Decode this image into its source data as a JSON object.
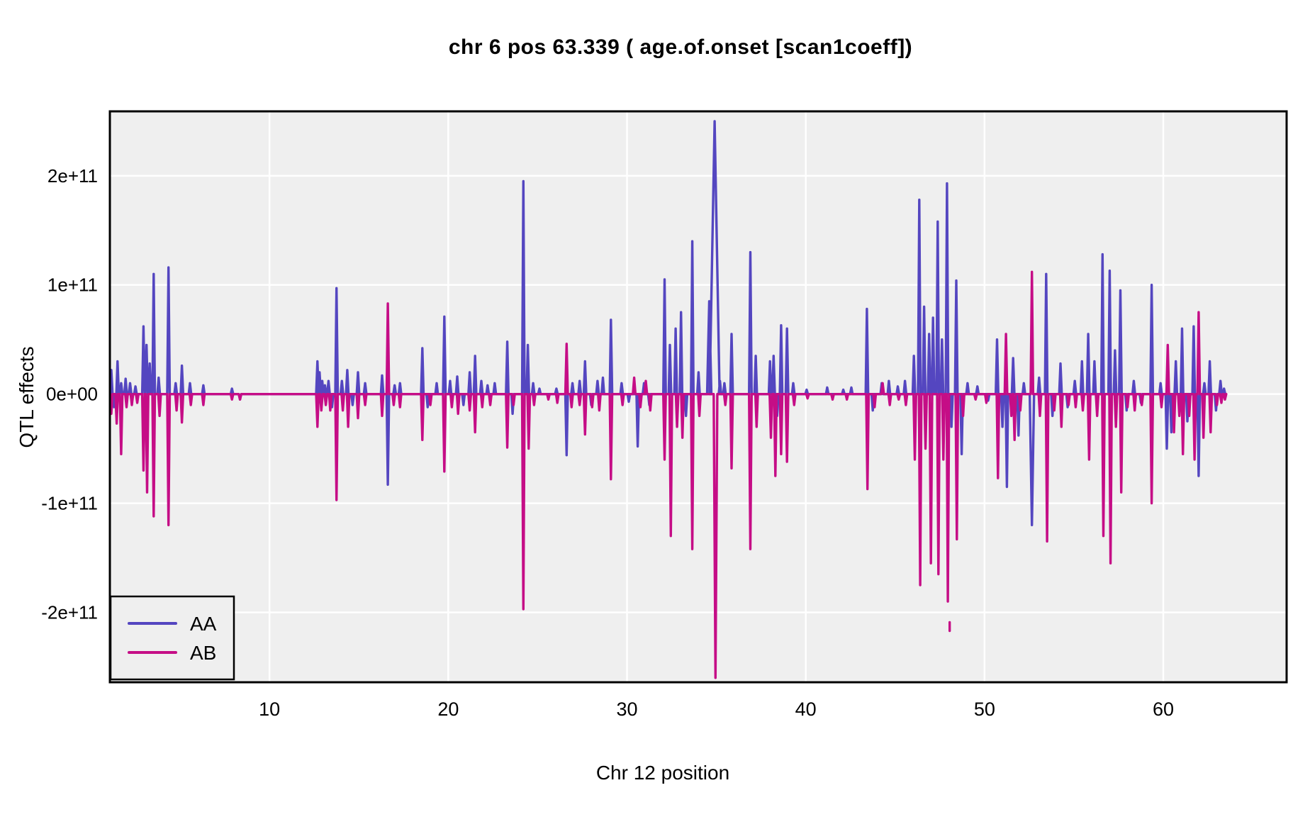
{
  "title": "chr 6 pos 63.339 ( age.of.onset  [scan1coeff])",
  "colors": {
    "aa_line": "#5446C0",
    "ab_line": "#C50D86",
    "panel_background": "#EFEFEF",
    "gridline": "#FFFFFF",
    "panel_border": "#000000",
    "text": "#000000",
    "page_background": "#FFFFFF"
  },
  "chart_data": {
    "type": "line",
    "title": "chr 6 pos 63.339 ( age.of.onset  [scan1coeff])",
    "xlabel": "Chr 12 position",
    "ylabel": "QTL effects",
    "unit": "values in units of 1e+11",
    "xlim": [
      1.07,
      66.9
    ],
    "ylim": [
      -2.64,
      2.59
    ],
    "data_x_range": [
      1.07,
      63.5
    ],
    "grid": "major gridlines only, white on grey panel",
    "x_ticks": [
      {
        "value": 10,
        "label": "10"
      },
      {
        "value": 20,
        "label": "20"
      },
      {
        "value": 30,
        "label": "30"
      },
      {
        "value": 40,
        "label": "40"
      },
      {
        "value": 50,
        "label": "50"
      },
      {
        "value": 60,
        "label": "60"
      }
    ],
    "y_ticks": [
      {
        "value": -2,
        "label": "-2e+11"
      },
      {
        "value": -1,
        "label": "-1e+11"
      },
      {
        "value": 0,
        "label": "0e+00"
      },
      {
        "value": 1,
        "label": "1e+11"
      },
      {
        "value": 2,
        "label": "2e+11"
      }
    ],
    "legend": {
      "position": "inside bottom-left",
      "entries": [
        {
          "name": "AA",
          "color": "#5446C0"
        },
        {
          "name": "AB",
          "color": "#C50D86"
        }
      ]
    },
    "series": [
      {
        "name": "AA",
        "color": "#5446C0",
        "baseline": 0,
        "spikes": [
          [
            1.15,
            0.22
          ],
          [
            1.3,
            -0.12
          ],
          [
            1.5,
            0.3
          ],
          [
            1.7,
            0.1
          ],
          [
            1.95,
            0.14
          ],
          [
            2.2,
            0.1
          ],
          [
            2.5,
            0.07
          ],
          [
            2.95,
            0.62
          ],
          [
            3.12,
            0.45
          ],
          [
            3.3,
            0.28
          ],
          [
            3.52,
            1.1
          ],
          [
            3.8,
            0.15
          ],
          [
            4.35,
            1.16
          ],
          [
            4.75,
            0.1
          ],
          [
            5.1,
            0.26
          ],
          [
            5.55,
            0.1
          ],
          [
            6.3,
            0.08
          ],
          [
            7.9,
            0.05
          ],
          [
            8.35,
            -0.05
          ],
          [
            12.68,
            0.3
          ],
          [
            12.8,
            0.2
          ],
          [
            12.95,
            0.12
          ],
          [
            13.1,
            0.08
          ],
          [
            13.3,
            0.12
          ],
          [
            13.5,
            -0.12
          ],
          [
            13.75,
            0.97
          ],
          [
            14.05,
            0.12
          ],
          [
            14.35,
            0.22
          ],
          [
            14.65,
            -0.1
          ],
          [
            14.95,
            0.2
          ],
          [
            15.35,
            0.1
          ],
          [
            16.3,
            0.17
          ],
          [
            16.62,
            -0.83
          ],
          [
            17.0,
            0.08
          ],
          [
            17.3,
            0.1
          ],
          [
            18.55,
            0.42
          ],
          [
            18.85,
            -0.12
          ],
          [
            19.35,
            0.1
          ],
          [
            19.78,
            0.71
          ],
          [
            20.1,
            0.12
          ],
          [
            20.5,
            0.16
          ],
          [
            20.85,
            -0.1
          ],
          [
            21.2,
            0.2
          ],
          [
            21.5,
            0.35
          ],
          [
            21.85,
            0.12
          ],
          [
            22.2,
            0.08
          ],
          [
            22.6,
            0.1
          ],
          [
            23.3,
            0.48
          ],
          [
            23.6,
            -0.18
          ],
          [
            24.2,
            1.95
          ],
          [
            24.45,
            0.45
          ],
          [
            24.75,
            0.1
          ],
          [
            25.1,
            0.05
          ],
          [
            26.05,
            0.05
          ],
          [
            26.62,
            -0.56
          ],
          [
            26.95,
            0.1
          ],
          [
            27.35,
            0.12
          ],
          [
            27.65,
            0.3
          ],
          [
            28.0,
            -0.1
          ],
          [
            28.35,
            0.12
          ],
          [
            28.65,
            0.15
          ],
          [
            29.1,
            0.68
          ],
          [
            29.7,
            0.1
          ],
          [
            30.1,
            -0.07
          ],
          [
            30.6,
            -0.48
          ],
          [
            30.95,
            0.1
          ],
          [
            31.25,
            -0.1
          ],
          [
            32.1,
            1.05
          ],
          [
            32.4,
            0.45
          ],
          [
            32.72,
            0.6
          ],
          [
            33.02,
            0.75
          ],
          [
            33.3,
            -0.2
          ],
          [
            33.65,
            1.4
          ],
          [
            34.0,
            0.2
          ],
          [
            34.6,
            0.85,
            0.12
          ],
          [
            34.9,
            2.5,
            0.28
          ],
          [
            35.2,
            0.12
          ],
          [
            35.45,
            0.1
          ],
          [
            35.85,
            0.55
          ],
          [
            36.9,
            1.3
          ],
          [
            37.2,
            0.35
          ],
          [
            38.0,
            0.3
          ],
          [
            38.2,
            0.35
          ],
          [
            38.4,
            -0.2
          ],
          [
            38.62,
            0.63
          ],
          [
            38.95,
            0.6
          ],
          [
            39.3,
            0.1
          ],
          [
            40.05,
            0.04
          ],
          [
            41.2,
            0.06
          ],
          [
            42.1,
            0.04
          ],
          [
            42.55,
            0.06
          ],
          [
            43.42,
            0.78
          ],
          [
            43.75,
            -0.15
          ],
          [
            44.25,
            0.1
          ],
          [
            44.65,
            0.12
          ],
          [
            45.15,
            0.07
          ],
          [
            45.55,
            0.12
          ],
          [
            46.05,
            0.35
          ],
          [
            46.35,
            1.78
          ],
          [
            46.62,
            0.8
          ],
          [
            46.9,
            0.55
          ],
          [
            47.12,
            0.7
          ],
          [
            47.38,
            1.58
          ],
          [
            47.62,
            0.5
          ],
          [
            47.9,
            1.93
          ],
          [
            48.15,
            -0.3
          ],
          [
            48.42,
            1.04
          ],
          [
            48.72,
            -0.55
          ],
          [
            49.05,
            0.1
          ],
          [
            49.6,
            0.07
          ],
          [
            50.2,
            -0.06
          ],
          [
            50.7,
            0.5
          ],
          [
            51.0,
            -0.3
          ],
          [
            51.25,
            -0.85
          ],
          [
            51.6,
            0.33
          ],
          [
            51.9,
            -0.38
          ],
          [
            52.2,
            0.1
          ],
          [
            52.65,
            -1.2,
            0.12
          ],
          [
            53.05,
            0.15
          ],
          [
            53.45,
            1.1
          ],
          [
            53.8,
            -0.2
          ],
          [
            54.25,
            0.28
          ],
          [
            54.65,
            -0.12
          ],
          [
            55.05,
            0.12
          ],
          [
            55.45,
            0.3
          ],
          [
            55.8,
            0.55
          ],
          [
            56.15,
            0.3
          ],
          [
            56.6,
            1.28
          ],
          [
            57.0,
            1.13
          ],
          [
            57.3,
            0.4
          ],
          [
            57.6,
            0.95
          ],
          [
            57.95,
            -0.15
          ],
          [
            58.35,
            0.12
          ],
          [
            58.75,
            -0.08
          ],
          [
            59.35,
            1.0
          ],
          [
            59.85,
            0.1
          ],
          [
            60.2,
            -0.5
          ],
          [
            60.45,
            -0.35
          ],
          [
            60.7,
            0.3
          ],
          [
            61.05,
            0.6
          ],
          [
            61.35,
            -0.25
          ],
          [
            61.7,
            0.62
          ],
          [
            61.98,
            -0.75
          ],
          [
            62.3,
            0.1
          ],
          [
            62.6,
            0.3
          ],
          [
            62.95,
            -0.15
          ],
          [
            63.2,
            0.12
          ],
          [
            63.4,
            0.05
          ]
        ],
        "dots": []
      },
      {
        "name": "AB",
        "color": "#C50D86",
        "baseline": 0,
        "spikes": [
          [
            1.15,
            -0.18
          ],
          [
            1.45,
            -0.27
          ],
          [
            1.7,
            -0.55
          ],
          [
            2.0,
            -0.12
          ],
          [
            2.3,
            -0.1
          ],
          [
            2.6,
            -0.08
          ],
          [
            2.95,
            -0.7
          ],
          [
            3.15,
            -0.9
          ],
          [
            3.52,
            -1.12
          ],
          [
            3.85,
            -0.2
          ],
          [
            4.35,
            -1.2
          ],
          [
            4.8,
            -0.15
          ],
          [
            5.1,
            -0.26
          ],
          [
            5.6,
            -0.1
          ],
          [
            6.3,
            -0.1
          ],
          [
            7.9,
            -0.05
          ],
          [
            8.35,
            -0.05
          ],
          [
            12.68,
            -0.3
          ],
          [
            12.9,
            -0.15
          ],
          [
            13.15,
            -0.1
          ],
          [
            13.4,
            -0.15
          ],
          [
            13.75,
            -0.97
          ],
          [
            14.1,
            -0.15
          ],
          [
            14.4,
            -0.3
          ],
          [
            14.95,
            -0.22
          ],
          [
            15.35,
            -0.1
          ],
          [
            16.3,
            -0.2
          ],
          [
            16.62,
            0.83
          ],
          [
            16.95,
            -0.1
          ],
          [
            17.3,
            -0.12
          ],
          [
            18.55,
            -0.42
          ],
          [
            19.0,
            -0.1
          ],
          [
            19.78,
            -0.71
          ],
          [
            20.2,
            -0.12
          ],
          [
            20.55,
            -0.18
          ],
          [
            21.2,
            -0.15
          ],
          [
            21.5,
            -0.35
          ],
          [
            21.9,
            -0.12
          ],
          [
            22.35,
            -0.1
          ],
          [
            23.3,
            -0.49
          ],
          [
            23.65,
            -0.1
          ],
          [
            24.2,
            -1.97
          ],
          [
            24.5,
            -0.5
          ],
          [
            24.8,
            -0.1
          ],
          [
            25.6,
            -0.05
          ],
          [
            26.1,
            -0.08
          ],
          [
            26.62,
            0.46
          ],
          [
            26.9,
            -0.12
          ],
          [
            27.35,
            -0.1
          ],
          [
            27.65,
            -0.37
          ],
          [
            28.05,
            -0.12
          ],
          [
            28.45,
            -0.15
          ],
          [
            29.1,
            -0.78
          ],
          [
            29.75,
            -0.1
          ],
          [
            30.4,
            0.15
          ],
          [
            30.75,
            -0.12
          ],
          [
            31.05,
            0.12
          ],
          [
            31.3,
            -0.15
          ],
          [
            32.1,
            -0.6
          ],
          [
            32.45,
            -1.3
          ],
          [
            32.8,
            -0.3
          ],
          [
            33.1,
            -0.4
          ],
          [
            33.65,
            -1.42
          ],
          [
            34.05,
            -0.2
          ],
          [
            34.95,
            -2.6,
            0.1
          ],
          [
            35.5,
            -0.1
          ],
          [
            35.85,
            -0.68
          ],
          [
            36.9,
            -1.42
          ],
          [
            37.25,
            -0.3
          ],
          [
            38.05,
            -0.4
          ],
          [
            38.3,
            -0.75
          ],
          [
            38.62,
            -0.55
          ],
          [
            38.95,
            -0.62
          ],
          [
            39.35,
            -0.1
          ],
          [
            40.1,
            -0.04
          ],
          [
            41.5,
            -0.05
          ],
          [
            42.3,
            -0.05
          ],
          [
            43.45,
            -0.87
          ],
          [
            43.85,
            -0.12
          ],
          [
            44.3,
            0.1
          ],
          [
            44.7,
            -0.1
          ],
          [
            45.2,
            -0.05
          ],
          [
            45.6,
            -0.1
          ],
          [
            46.1,
            -0.6
          ],
          [
            46.4,
            -1.75
          ],
          [
            46.7,
            -0.5
          ],
          [
            47.0,
            -1.55
          ],
          [
            47.42,
            -1.65
          ],
          [
            47.7,
            -0.6
          ],
          [
            47.95,
            -1.9
          ],
          [
            48.45,
            -1.33
          ],
          [
            48.8,
            -0.2
          ],
          [
            49.5,
            -0.05
          ],
          [
            50.1,
            -0.08
          ],
          [
            50.75,
            -0.77
          ],
          [
            51.2,
            0.55
          ],
          [
            51.5,
            -0.2
          ],
          [
            51.68,
            -0.42
          ],
          [
            52.0,
            -0.15
          ],
          [
            52.65,
            1.12
          ],
          [
            53.1,
            -0.2
          ],
          [
            53.5,
            -1.35
          ],
          [
            53.9,
            -0.15
          ],
          [
            54.3,
            -0.3
          ],
          [
            54.7,
            -0.1
          ],
          [
            55.1,
            -0.12
          ],
          [
            55.5,
            -0.15
          ],
          [
            55.85,
            -0.6
          ],
          [
            56.3,
            -0.2
          ],
          [
            56.65,
            -1.3
          ],
          [
            57.05,
            -1.55
          ],
          [
            57.35,
            -0.3
          ],
          [
            57.65,
            -0.9
          ],
          [
            58.0,
            -0.12
          ],
          [
            58.4,
            -0.15
          ],
          [
            58.8,
            -0.1
          ],
          [
            59.35,
            -1.0
          ],
          [
            59.9,
            -0.12
          ],
          [
            60.25,
            0.45
          ],
          [
            60.6,
            -0.35
          ],
          [
            60.9,
            -0.2
          ],
          [
            61.1,
            -0.55
          ],
          [
            61.45,
            -0.2
          ],
          [
            61.75,
            -0.6
          ],
          [
            61.98,
            0.75
          ],
          [
            62.25,
            -0.4
          ],
          [
            62.65,
            -0.35
          ],
          [
            63.0,
            -0.1
          ],
          [
            63.25,
            -0.08
          ],
          [
            63.45,
            -0.05
          ]
        ],
        "dots": [
          [
            48.05,
            -2.13
          ]
        ]
      }
    ]
  }
}
